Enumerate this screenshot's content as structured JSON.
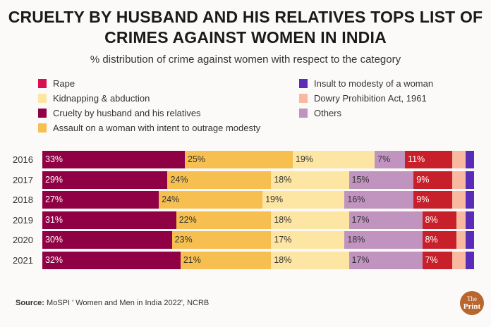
{
  "chart_data": {
    "type": "bar",
    "orientation": "horizontal-stacked-100",
    "title": "CRUELTY BY HUSBAND AND HIS RELATIVES TOPS LIST OF CRIMES AGAINST WOMEN IN INDIA",
    "subtitle": "% distribution of crime against women with respect to the category",
    "categories": [
      "2016",
      "2017",
      "2018",
      "2019",
      "2020",
      "2021"
    ],
    "series": [
      {
        "name": "Cruelty by husband and his relatives",
        "color": "#8f0045",
        "values": [
          33,
          29,
          27,
          31,
          30,
          32
        ],
        "labeled": true
      },
      {
        "name": "Assault on a woman with intent to outrage modesty",
        "color": "#f6bf4f",
        "values": [
          25,
          24,
          24,
          22,
          23,
          21
        ],
        "labeled": true
      },
      {
        "name": "Kidnapping & abduction",
        "color": "#fde5a3",
        "values": [
          19,
          18,
          19,
          18,
          17,
          18
        ],
        "labeled": true
      },
      {
        "name": "Others",
        "color": "#c194c0",
        "values": [
          7,
          15,
          16,
          17,
          18,
          17
        ],
        "labeled": true
      },
      {
        "name": "Rape",
        "color": "#c8202a",
        "values": [
          11,
          9,
          9,
          8,
          8,
          7
        ],
        "labeled": true
      },
      {
        "name": "Dowry Prohibition Act, 1961",
        "color": "#f8b9a0",
        "values": [
          3,
          3,
          3,
          2,
          2,
          3
        ],
        "labeled": false
      },
      {
        "name": "Insult to modesty of a woman",
        "color": "#5a2db8",
        "values": [
          2,
          2,
          2,
          2,
          2,
          2
        ],
        "labeled": false
      }
    ],
    "legend": [
      {
        "name": "Rape",
        "color": "#d7104f",
        "column": "left"
      },
      {
        "name": "Kidnapping & abduction",
        "color": "#fde5a3",
        "column": "left"
      },
      {
        "name": "Cruelty by husband and his relatives",
        "color": "#8f0045",
        "column": "left"
      },
      {
        "name": "Assault on a woman with intent to outrage modesty",
        "color": "#f6bf4f",
        "column": "left"
      },
      {
        "name": "Insult to modesty of a woman",
        "color": "#5a2db8",
        "column": "right"
      },
      {
        "name": "Dowry Prohibition Act, 1961",
        "color": "#f8b9a0",
        "column": "right"
      },
      {
        "name": "Others",
        "color": "#c194c0",
        "column": "right"
      }
    ],
    "legend_position": "top",
    "grid": false
  },
  "source_label": "Source:",
  "source_text": " MoSPI ' Women and Men in India 2022', NCRB",
  "logo_text": "The Print"
}
